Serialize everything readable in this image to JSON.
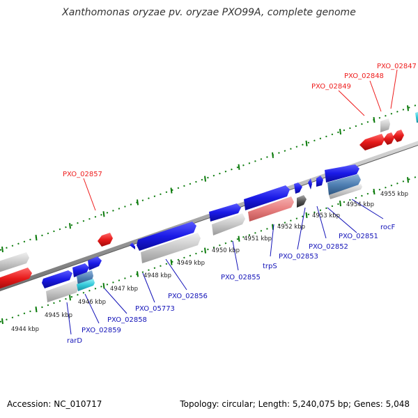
{
  "title": "Xanthomonas oryzae pv. oryzae PXO99A, complete genome",
  "footer": {
    "accession": "Accession: NC_010717",
    "summary": "Topology: circular; Length: 5,240,075 bp; Genes: 5,048"
  },
  "colors": {
    "forward_cds": "#1a1ae6",
    "reverse_cds": "#e61a1a",
    "other_feature": "#c8c8c8",
    "rna_feature": "#4f7fb3",
    "highlight_feature": "#e88080",
    "cyan_feature": "#33c9d9",
    "dark_feature": "#555555",
    "backbone": "#909090",
    "ticks": "#0a7a0a"
  },
  "kbp_labels": [
    "4944 kbp",
    "4945 kbp",
    "4946 kbp",
    "4947 kbp",
    "4948 kbp",
    "4949 kbp",
    "4950 kbp",
    "4951 kbp",
    "4952 kbp",
    "4953 kbp",
    "4954 kbp",
    "4955 kbp"
  ],
  "genes_reverse": [
    "PXO_02857",
    "PXO_02849",
    "PXO_02848",
    "PXO_02847"
  ],
  "genes_forward": [
    "rarD",
    "PXO_02859",
    "PXO_02858",
    "PXO_05773",
    "PXO_02856",
    "PXO_02855",
    "trpS",
    "PXO_02853",
    "PXO_02852",
    "PXO_02851",
    "rocF"
  ]
}
